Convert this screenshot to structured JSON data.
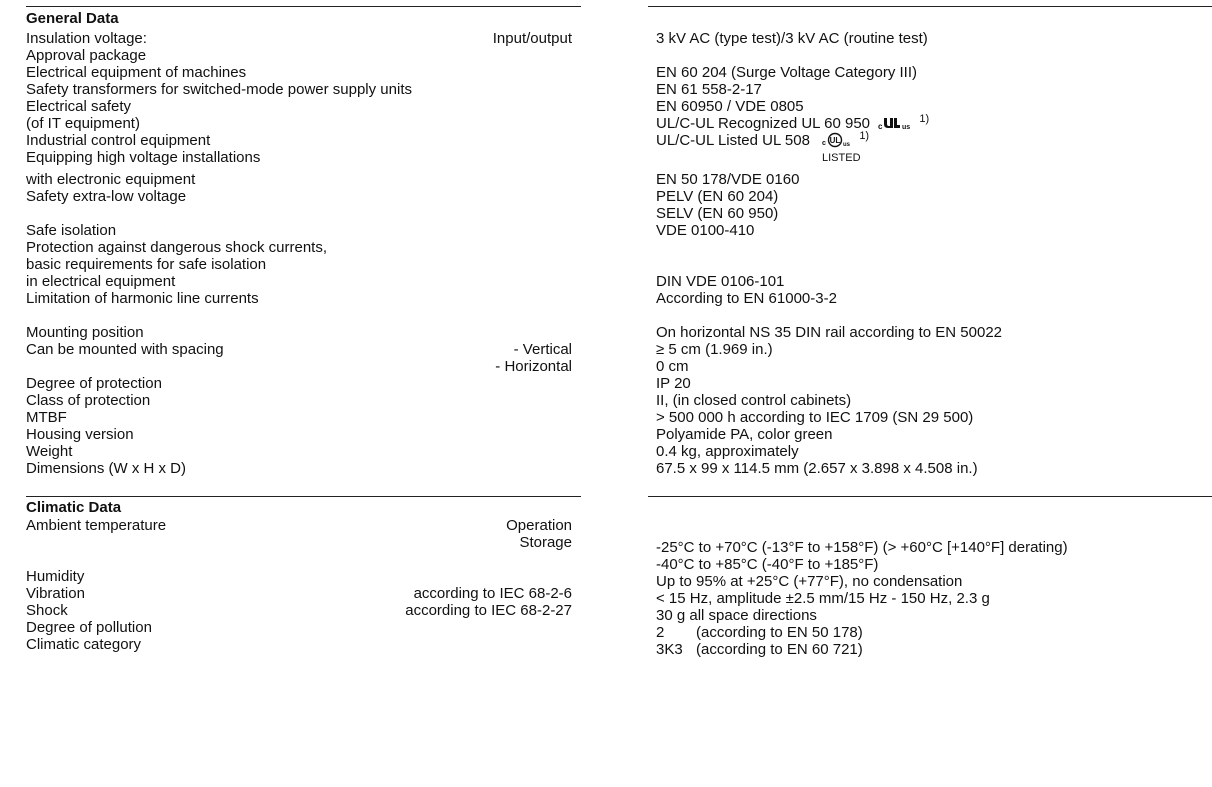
{
  "sections": {
    "general": {
      "title": "General Data"
    },
    "climatic": {
      "title": "Climatic Data"
    }
  },
  "general": {
    "insulation": {
      "label": "Insulation voltage:",
      "mid": "Input/output",
      "value": "3 kV AC (type test)/3 kV AC (routine test)"
    },
    "approval": {
      "label": "Approval package"
    },
    "electrical_equipment": {
      "label": "Electrical equipment of machines",
      "value": "EN 60 204 (Surge Voltage Category III)"
    },
    "safety_transformers": {
      "label": "Safety transformers for switched-mode power supply units",
      "value": "EN 61 558-2-17"
    },
    "electrical_safety": {
      "label": "Electrical safety",
      "value": "EN 60950 / VDE 0805"
    },
    "it_equipment": {
      "label": "(of IT equipment)",
      "value": "UL/C-UL Recognized UL 60 950",
      "footnote": "1)"
    },
    "industrial_control": {
      "label": "Industrial control equipment",
      "value": "UL/C-UL Listed UL 508",
      "footnote": "1)",
      "listed_text": "LISTED"
    },
    "high_voltage": {
      "label": "Equipping high voltage installations"
    },
    "electronic_equipment": {
      "label": "with electronic equipment",
      "value": "EN 50 178/VDE 0160"
    },
    "selv": {
      "label": "Safety extra-low voltage",
      "value": "PELV (EN 60 204)",
      "value2": "SELV (EN 60 950)"
    },
    "safe_isolation": {
      "label": "Safe isolation",
      "value": "VDE 0100-410"
    },
    "shock_protection": {
      "label": "Protection against dangerous shock currents,"
    },
    "basic_requirements": {
      "label": "basic requirements for safe isolation"
    },
    "in_electrical": {
      "label": "in electrical equipment",
      "value": "DIN VDE 0106-101"
    },
    "harmonic": {
      "label": "Limitation of harmonic line currents",
      "value": "According to EN 61000-3-2"
    },
    "mounting_position": {
      "label": "Mounting position",
      "value": "On horizontal NS 35 DIN rail according to EN 50022"
    },
    "spacing": {
      "label": "Can be mounted with spacing",
      "mid": "- Vertical",
      "value": "≥ 5 cm (1.969 in.)",
      "mid2": "- Horizontal",
      "value2": "0 cm"
    },
    "degree_protection": {
      "label": "Degree of protection",
      "value": "IP 20"
    },
    "class_protection": {
      "label": "Class of protection",
      "value": "II, (in closed control cabinets)"
    },
    "mtbf": {
      "label": "MTBF",
      "value": "> 500 000 h according to IEC 1709 (SN 29 500)"
    },
    "housing": {
      "label": "Housing version",
      "value": "Polyamide PA, color green"
    },
    "weight": {
      "label": "Weight",
      "value": "0.4 kg, approximately"
    },
    "dimensions": {
      "label": "Dimensions (W x H x D)",
      "value": "67.5 x 99 x 114.5 mm (2.657 x 3.898 x 4.508 in.)"
    }
  },
  "climatic": {
    "ambient": {
      "label": "Ambient temperature",
      "mid": "Operation",
      "value": "-25°C to +70°C (-13°F to +158°F) (> +60°C [+140°F] derating)",
      "mid2": "Storage",
      "value2": "-40°C to +85°C (-40°F to +185°F)"
    },
    "humidity": {
      "label": "Humidity",
      "value": "Up to 95% at +25°C (+77°F), no condensation"
    },
    "vibration": {
      "label": "Vibration",
      "mid": "according to IEC 68-2-6",
      "value": "< 15 Hz, amplitude ±2.5 mm/15 Hz - 150 Hz, 2.3 g"
    },
    "shock": {
      "label": "Shock",
      "mid": "according to IEC 68-2-27",
      "value": "30 g all space directions"
    },
    "pollution": {
      "label": "Degree of pollution",
      "num": "2",
      "value": "(according to EN 50 178)"
    },
    "climatic_category": {
      "label": "Climatic category",
      "num": "3K3",
      "value": "(according to EN 60 721)"
    }
  },
  "marks": {
    "recognized": {
      "icon": "ul-recognized-mark-icon",
      "c_letter": "c",
      "us_letters": "us"
    },
    "listed": {
      "icon": "ul-listed-mark-icon",
      "c_letter": "c",
      "ul_letters": "UL",
      "us_letters": "us"
    }
  }
}
